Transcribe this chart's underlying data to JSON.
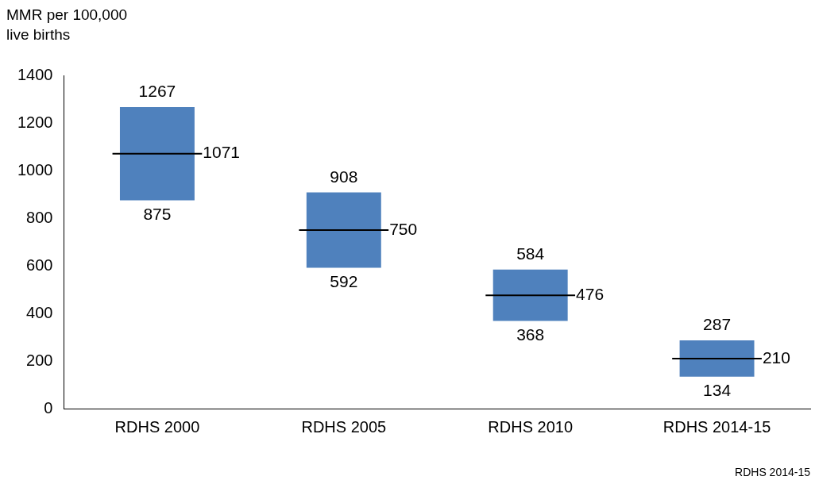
{
  "chart_data": {
    "type": "bar",
    "ylabel": "MMR per 100,000\nlive births",
    "categories": [
      "RDHS 2000",
      "RDHS 2005",
      "RDHS 2010",
      "RDHS 2014-15"
    ],
    "series": [
      {
        "type": "bar",
        "color": "#4f81bd",
        "base": [
          875,
          592,
          368,
          134
        ],
        "values": [
          196,
          158,
          108,
          76
        ]
      },
      {
        "type": "bar",
        "color": "#4f81bd",
        "base": [
          1071,
          750,
          476,
          210
        ],
        "values": [
          196,
          158,
          108,
          77
        ]
      }
    ],
    "ylim": [
      0,
      1400
    ],
    "yticks": [
      0,
      200,
      400,
      600,
      800,
      1000,
      1200,
      1400
    ],
    "grid": false,
    "legend": false,
    "annotations": [
      {
        "text": "1267",
        "x": "RDHS 2000",
        "y": 1267
      },
      {
        "text": "1071",
        "x": "RDHS 2000",
        "y": 1071
      },
      {
        "text": "875",
        "x": "RDHS 2000",
        "y": 875
      },
      {
        "text": "908",
        "x": "RDHS 2005",
        "y": 908
      },
      {
        "text": "750",
        "x": "RDHS 2005",
        "y": 750
      },
      {
        "text": "592",
        "x": "RDHS 2005",
        "y": 592
      },
      {
        "text": "584",
        "x": "RDHS 2010",
        "y": 584
      },
      {
        "text": "476",
        "x": "RDHS 2010",
        "y": 476
      },
      {
        "text": "368",
        "x": "RDHS 2010",
        "y": 368
      },
      {
        "text": "287",
        "x": "RDHS 2014-15",
        "y": 287
      },
      {
        "text": "210",
        "x": "RDHS 2014-15",
        "y": 210
      },
      {
        "text": "134",
        "x": "RDHS 2014-15",
        "y": 134
      },
      "RDHS 2014-15"
    ]
  }
}
